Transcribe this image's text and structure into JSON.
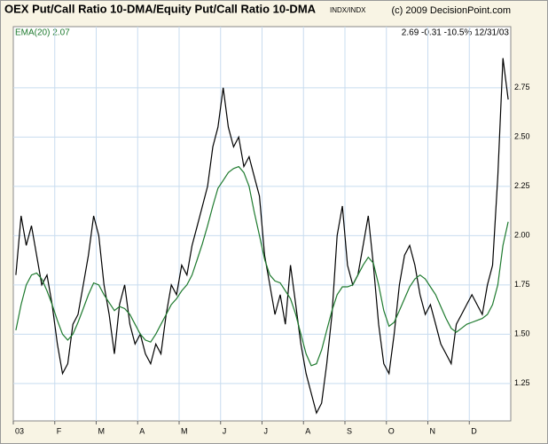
{
  "chart_data": {
    "type": "line",
    "title": "OEX Put/Call Ratio 10-DMA/Equity Put/Call Ratio 10-DMA",
    "symbol": "INDX/INDX",
    "copyright": "(c) 2009 DecisionPoint.com",
    "header_stats": "2.69 -0.31 -10.5% 12/31/03",
    "categories": [
      "03",
      null,
      null,
      null,
      null,
      null,
      null,
      null,
      "F",
      null,
      null,
      null,
      null,
      null,
      null,
      null,
      "M",
      null,
      null,
      null,
      null,
      null,
      null,
      null,
      "A",
      null,
      null,
      null,
      null,
      null,
      null,
      null,
      "M",
      null,
      null,
      null,
      null,
      null,
      null,
      null,
      "J",
      null,
      null,
      null,
      null,
      null,
      null,
      null,
      "J",
      null,
      null,
      null,
      null,
      null,
      null,
      null,
      "A",
      null,
      null,
      null,
      null,
      null,
      null,
      null,
      "S",
      null,
      null,
      null,
      null,
      null,
      null,
      null,
      "O",
      null,
      null,
      null,
      null,
      null,
      null,
      null,
      "N",
      null,
      null,
      null,
      null,
      null,
      null,
      null,
      "D",
      null,
      null,
      null,
      null,
      null,
      null,
      null
    ],
    "series": [
      {
        "color": "#000000",
        "values": [
          1.8,
          2.1,
          1.95,
          2.05,
          1.9,
          1.75,
          1.8,
          1.65,
          1.45,
          1.3,
          1.35,
          1.55,
          1.6,
          1.75,
          1.9,
          2.1,
          2.0,
          1.75,
          1.6,
          1.4,
          1.65,
          1.75,
          1.55,
          1.45,
          1.5,
          1.4,
          1.35,
          1.45,
          1.4,
          1.6,
          1.75,
          1.7,
          1.85,
          1.8,
          1.95,
          2.05,
          2.15,
          2.25,
          2.45,
          2.55,
          2.75,
          2.55,
          2.45,
          2.5,
          2.35,
          2.4,
          2.3,
          2.2,
          1.9,
          1.75,
          1.6,
          1.7,
          1.55,
          1.85,
          1.65,
          1.45,
          1.3,
          1.2,
          1.1,
          1.15,
          1.35,
          1.6,
          2.0,
          2.15,
          1.85,
          1.75,
          1.8,
          1.95,
          2.1,
          1.85,
          1.55,
          1.35,
          1.3,
          1.5,
          1.75,
          1.9,
          1.95,
          1.85,
          1.7,
          1.6,
          1.65,
          1.55,
          1.45,
          1.4,
          1.35,
          1.55,
          1.6,
          1.65,
          1.7,
          1.65,
          1.6,
          1.75,
          1.85,
          2.3,
          2.9,
          2.69
        ]
      },
      {
        "name": "EMA(20) 2.07",
        "color": "#1e7a2e",
        "values": [
          1.52,
          1.65,
          1.75,
          1.8,
          1.81,
          1.78,
          1.72,
          1.65,
          1.57,
          1.5,
          1.47,
          1.5,
          1.56,
          1.63,
          1.7,
          1.76,
          1.75,
          1.7,
          1.66,
          1.62,
          1.64,
          1.63,
          1.6,
          1.55,
          1.5,
          1.47,
          1.46,
          1.5,
          1.55,
          1.6,
          1.65,
          1.68,
          1.72,
          1.75,
          1.8,
          1.88,
          1.96,
          2.05,
          2.15,
          2.24,
          2.28,
          2.32,
          2.34,
          2.35,
          2.32,
          2.25,
          2.12,
          2.0,
          1.88,
          1.8,
          1.77,
          1.76,
          1.72,
          1.68,
          1.6,
          1.5,
          1.4,
          1.34,
          1.35,
          1.42,
          1.52,
          1.62,
          1.7,
          1.74,
          1.74,
          1.75,
          1.8,
          1.85,
          1.89,
          1.86,
          1.75,
          1.62,
          1.54,
          1.56,
          1.62,
          1.68,
          1.74,
          1.78,
          1.8,
          1.78,
          1.74,
          1.7,
          1.64,
          1.58,
          1.53,
          1.51,
          1.53,
          1.55,
          1.56,
          1.57,
          1.58,
          1.6,
          1.65,
          1.75,
          1.95,
          2.07
        ]
      }
    ],
    "ylim": [
      1.06,
      3.06
    ],
    "yticks": [
      1.25,
      {
        "value": 1.5,
        "label": "1.50"
      },
      1.75,
      {
        "value": 2,
        "label": "2.00"
      },
      2.25,
      {
        "value": 2.5,
        "label": "2.50"
      },
      2.75
    ],
    "grid": true
  }
}
